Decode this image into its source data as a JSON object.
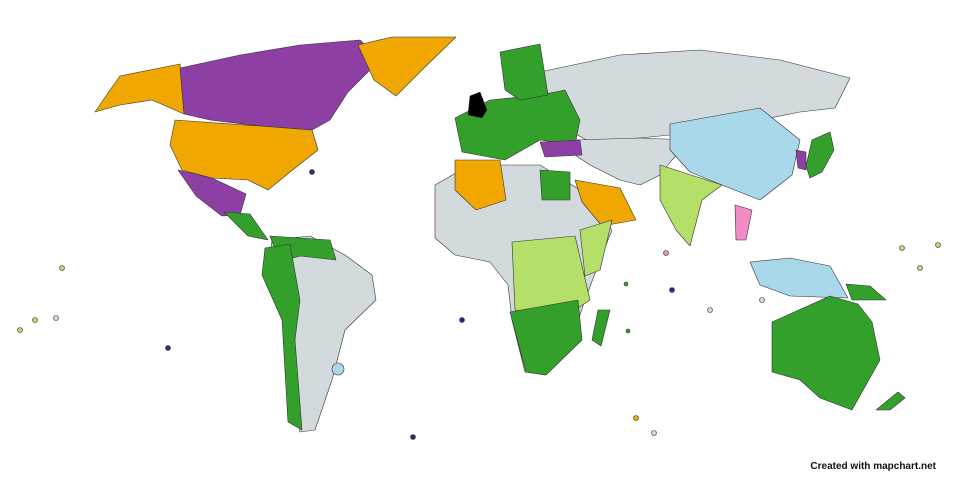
{
  "map": {
    "credit": "Created with mapchart.net",
    "category_colors": {
      "purple": "#8e3fa3",
      "orange": "#f0a800",
      "green": "#33a02c",
      "light_green": "#b4e06a",
      "light_blue": "#a8d8ea",
      "pink": "#f08cc4",
      "black": "#000000",
      "default": "#d3dadd"
    },
    "regions": {
      "canada": "purple",
      "mexico": "purple",
      "turkey": "purple",
      "north-korea": "purple",
      "alaska": "orange",
      "usa": "orange",
      "greenland": "orange",
      "algeria": "orange",
      "saudi-arabia": "orange",
      "central-america": "green",
      "northern-south-america": "green",
      "andean-south-america": "green",
      "europe": "green",
      "scandinavia": "green",
      "egypt": "green",
      "southern-africa": "green",
      "madagascar": "green",
      "japan": "green",
      "papua-new-guinea": "green",
      "australia": "green",
      "new-zealand": "green",
      "india": "light_green",
      "central-africa": "light_green",
      "horn-of-africa": "light_green",
      "china": "light_blue",
      "uruguay": "light_blue",
      "indonesia": "light_blue",
      "thailand": "pink",
      "united-kingdom": "black",
      "russia": "default",
      "africa": "default",
      "south-america": "default",
      "middle-east-central-asia": "default"
    }
  }
}
